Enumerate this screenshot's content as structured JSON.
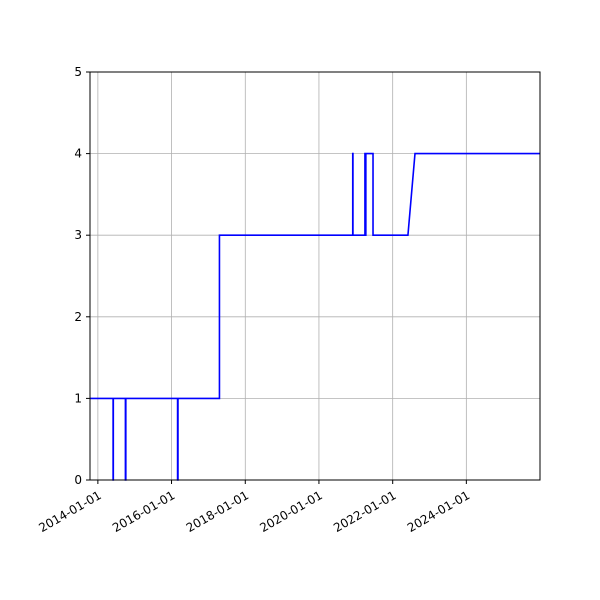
{
  "chart_data": {
    "type": "line",
    "title": "",
    "xlabel": "",
    "ylabel": "",
    "x_axis_type": "date",
    "xlim": [
      "2013-10-15",
      "2025-12-31"
    ],
    "ylim": [
      0,
      5
    ],
    "grid": true,
    "x_ticks": [
      "2014-01-01",
      "2016-01-01",
      "2018-01-01",
      "2020-01-01",
      "2022-01-01",
      "2024-01-01"
    ],
    "y_ticks": [
      "0",
      "1",
      "2",
      "3",
      "4",
      "5"
    ],
    "series": [
      {
        "color": "#0000ff",
        "points": [
          [
            "2013-10-15",
            1
          ],
          [
            "2014-06-01",
            1
          ],
          [
            "2014-06-01",
            0
          ],
          [
            "2014-06-03",
            0
          ],
          [
            "2014-06-03",
            1
          ],
          [
            "2014-10-01",
            1
          ],
          [
            "2014-10-01",
            0
          ],
          [
            "2014-10-05",
            0
          ],
          [
            "2014-10-05",
            1
          ],
          [
            "2016-03-01",
            1
          ],
          [
            "2016-03-01",
            0
          ],
          [
            "2016-03-05",
            0
          ],
          [
            "2016-03-05",
            1
          ],
          [
            "2017-04-20",
            1
          ],
          [
            "2017-04-20",
            3
          ],
          [
            "2020-12-01",
            3
          ],
          [
            "2020-12-01",
            4
          ],
          [
            "2020-12-03",
            4
          ],
          [
            "2020-12-03",
            3
          ],
          [
            "2021-04-01",
            3
          ],
          [
            "2021-04-01",
            4
          ],
          [
            "2021-04-08",
            4
          ],
          [
            "2021-04-08",
            3
          ],
          [
            "2021-04-10",
            3
          ],
          [
            "2021-04-10",
            4
          ],
          [
            "2021-06-20",
            4
          ],
          [
            "2021-06-20",
            3
          ],
          [
            "2022-06-01",
            3
          ],
          [
            "2022-08-10",
            4
          ],
          [
            "2025-12-31",
            4
          ]
        ]
      }
    ]
  }
}
